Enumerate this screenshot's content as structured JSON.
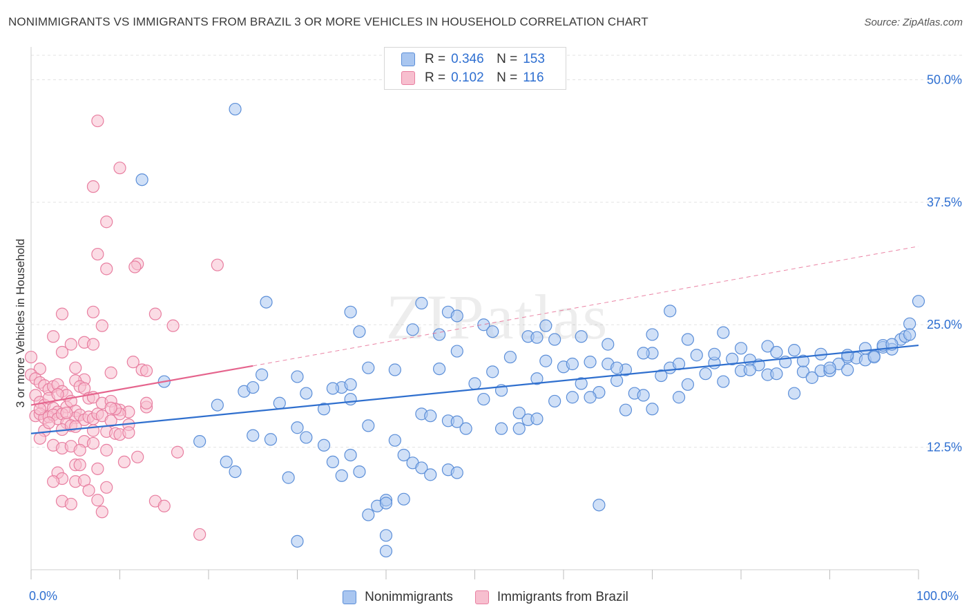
{
  "title": "NONIMMIGRANTS VS IMMIGRANTS FROM BRAZIL 3 OR MORE VEHICLES IN HOUSEHOLD CORRELATION CHART",
  "source": "Source: ZipAtlas.com",
  "watermark": "ZIPatlas",
  "colors": {
    "blue_fill": "#a9c6f0",
    "blue_stroke": "#5b8ed8",
    "blue_line": "#2f6fce",
    "pink_fill": "#f7bfcf",
    "pink_stroke": "#e87ea0",
    "pink_line": "#e5648d",
    "grid": "#e3e3e3",
    "tick_text": "#2e6fd1"
  },
  "legend_top": [
    {
      "r_label": "R =",
      "r_value": "0.346",
      "n_label": "N =",
      "n_value": "153"
    },
    {
      "r_label": "R =",
      "r_value": "0.102",
      "n_label": "N =",
      "n_value": "116"
    }
  ],
  "chart_data": {
    "type": "scatter",
    "title": "NONIMMIGRANTS VS IMMIGRANTS FROM BRAZIL 3 OR MORE VEHICLES IN HOUSEHOLD CORRELATION CHART",
    "xlabel": "",
    "ylabel": "3 or more Vehicles in Household",
    "xlim": [
      0,
      100
    ],
    "ylim": [
      0,
      52.5
    ],
    "x_tick_labels": [
      "0.0%",
      "100.0%"
    ],
    "y_ticks": [
      12.5,
      25.0,
      37.5,
      50.0
    ],
    "y_tick_labels": [
      "12.5%",
      "25.0%",
      "37.5%",
      "50.0%"
    ],
    "grid": true,
    "legend_position": "top-center and bottom",
    "series": [
      {
        "name": "Nonimmigrants",
        "r": 0.346,
        "n": 153,
        "trend": {
          "x": [
            0,
            100
          ],
          "y": [
            13.9,
            22.9
          ]
        },
        "points": [
          [
            23,
            47.0
          ],
          [
            12.5,
            39.8
          ],
          [
            26.5,
            27.3
          ],
          [
            44,
            27.2
          ],
          [
            36,
            26.3
          ],
          [
            47,
            26.3
          ],
          [
            48,
            25.9
          ],
          [
            72,
            26.4
          ],
          [
            51,
            25.0
          ],
          [
            58,
            24.9
          ],
          [
            37,
            24.3
          ],
          [
            43,
            24.5
          ],
          [
            46,
            24.0
          ],
          [
            56,
            23.8
          ],
          [
            59,
            23.5
          ],
          [
            62,
            23.8
          ],
          [
            65,
            23.0
          ],
          [
            70,
            24.0
          ],
          [
            74,
            23.5
          ],
          [
            78,
            24.2
          ],
          [
            80,
            22.6
          ],
          [
            83,
            22.8
          ],
          [
            86,
            22.4
          ],
          [
            89,
            22.0
          ],
          [
            92,
            21.7
          ],
          [
            96,
            22.7
          ],
          [
            98,
            23.5
          ],
          [
            99,
            25.1
          ],
          [
            100,
            27.4
          ],
          [
            15,
            19.2
          ],
          [
            21,
            16.8
          ],
          [
            24,
            18.2
          ],
          [
            25,
            18.6
          ],
          [
            26,
            19.9
          ],
          [
            28,
            17.0
          ],
          [
            30,
            19.7
          ],
          [
            33,
            16.4
          ],
          [
            35,
            18.6
          ],
          [
            36,
            18.9
          ],
          [
            38,
            20.6
          ],
          [
            41,
            20.4
          ],
          [
            44,
            15.9
          ],
          [
            45,
            15.7
          ],
          [
            47,
            15.2
          ],
          [
            48,
            15.1
          ],
          [
            49,
            14.4
          ],
          [
            50,
            19.0
          ],
          [
            51,
            17.4
          ],
          [
            52,
            20.2
          ],
          [
            53,
            18.3
          ],
          [
            54,
            21.7
          ],
          [
            55,
            14.4
          ],
          [
            56,
            15.3
          ],
          [
            57,
            19.5
          ],
          [
            58,
            21.3
          ],
          [
            60,
            20.7
          ],
          [
            61,
            17.6
          ],
          [
            62,
            19.0
          ],
          [
            63,
            21.2
          ],
          [
            64,
            18.1
          ],
          [
            65,
            21.0
          ],
          [
            66,
            19.3
          ],
          [
            67,
            20.4
          ],
          [
            68,
            18.0
          ],
          [
            69,
            17.8
          ],
          [
            70,
            22.1
          ],
          [
            71,
            19.8
          ],
          [
            72,
            20.6
          ],
          [
            73,
            17.6
          ],
          [
            74,
            18.9
          ],
          [
            75,
            21.9
          ],
          [
            76,
            20.0
          ],
          [
            77,
            21.1
          ],
          [
            78,
            19.2
          ],
          [
            79,
            21.5
          ],
          [
            80,
            20.3
          ],
          [
            81,
            21.4
          ],
          [
            82,
            20.9
          ],
          [
            83,
            19.9
          ],
          [
            84,
            20.0
          ],
          [
            85,
            21.2
          ],
          [
            86,
            18.0
          ],
          [
            87,
            20.2
          ],
          [
            88,
            19.6
          ],
          [
            89,
            20.3
          ],
          [
            90,
            20.3
          ],
          [
            91,
            21.0
          ],
          [
            92,
            20.4
          ],
          [
            93,
            21.6
          ],
          [
            94,
            21.4
          ],
          [
            95,
            21.8
          ],
          [
            97,
            22.5
          ],
          [
            98.5,
            23.8
          ],
          [
            19,
            13.1
          ],
          [
            22,
            11.0
          ],
          [
            25,
            13.7
          ],
          [
            27,
            13.3
          ],
          [
            29,
            9.4
          ],
          [
            30,
            14.5
          ],
          [
            31,
            13.5
          ],
          [
            33,
            12.7
          ],
          [
            34,
            11.0
          ],
          [
            35,
            9.6
          ],
          [
            36,
            11.7
          ],
          [
            37,
            10.0
          ],
          [
            38,
            14.7
          ],
          [
            39,
            6.5
          ],
          [
            40,
            7.1
          ],
          [
            41,
            13.2
          ],
          [
            42,
            11.7
          ],
          [
            43,
            10.9
          ],
          [
            44,
            10.4
          ],
          [
            45,
            9.7
          ],
          [
            47,
            10.2
          ],
          [
            48,
            9.9
          ],
          [
            53,
            14.4
          ],
          [
            57,
            15.4
          ],
          [
            38,
            5.6
          ],
          [
            40,
            6.8
          ],
          [
            42,
            7.2
          ],
          [
            23,
            10.0
          ],
          [
            30,
            2.9
          ],
          [
            40,
            3.5
          ],
          [
            40,
            1.9
          ],
          [
            64,
            6.6
          ],
          [
            70,
            16.4
          ],
          [
            67,
            16.3
          ],
          [
            63,
            17.6
          ],
          [
            48,
            22.3
          ],
          [
            46,
            20.5
          ],
          [
            52,
            24.3
          ],
          [
            57,
            23.7
          ],
          [
            61,
            21.0
          ],
          [
            66,
            20.6
          ],
          [
            69,
            22.1
          ],
          [
            73,
            21.0
          ],
          [
            77,
            22.0
          ],
          [
            81,
            20.4
          ],
          [
            84,
            22.2
          ],
          [
            87,
            21.3
          ],
          [
            90,
            20.6
          ],
          [
            92,
            21.9
          ],
          [
            94,
            22.6
          ],
          [
            95,
            21.7
          ],
          [
            96,
            22.9
          ],
          [
            97,
            23.0
          ],
          [
            99,
            24.0
          ],
          [
            55,
            16.0
          ],
          [
            59,
            17.2
          ],
          [
            31,
            18.0
          ],
          [
            34,
            18.5
          ],
          [
            36,
            17.4
          ]
        ]
      },
      {
        "name": "Immigrants from Brazil",
        "r": 0.102,
        "n": 116,
        "trend": {
          "x": [
            0,
            25
          ],
          "y": [
            16.8,
            20.8
          ]
        },
        "trend_dashed": {
          "x": [
            25,
            100
          ],
          "y": [
            20.8,
            33.0
          ]
        },
        "points": [
          [
            7.5,
            45.8
          ],
          [
            10,
            41.0
          ],
          [
            7,
            39.1
          ],
          [
            8.5,
            35.5
          ],
          [
            7.5,
            32.2
          ],
          [
            12,
            31.2
          ],
          [
            11.7,
            30.9
          ],
          [
            8.5,
            30.7
          ],
          [
            21,
            31.1
          ],
          [
            3.5,
            26.1
          ],
          [
            7,
            26.3
          ],
          [
            14,
            26.1
          ],
          [
            8,
            24.9
          ],
          [
            16,
            24.9
          ],
          [
            2.5,
            23.8
          ],
          [
            4.5,
            23.0
          ],
          [
            6,
            23.2
          ],
          [
            7,
            23.0
          ],
          [
            3.5,
            22.2
          ],
          [
            11.5,
            21.2
          ],
          [
            0,
            21.7
          ],
          [
            1,
            20.5
          ],
          [
            5,
            20.6
          ],
          [
            9,
            20.1
          ],
          [
            12.5,
            20.4
          ],
          [
            13,
            20.3
          ],
          [
            6,
            19.4
          ],
          [
            0,
            19.9
          ],
          [
            0.5,
            19.5
          ],
          [
            1,
            19.1
          ],
          [
            1.5,
            18.8
          ],
          [
            2,
            18.4
          ],
          [
            2.5,
            18.7
          ],
          [
            3,
            18.9
          ],
          [
            3.5,
            18.2
          ],
          [
            4,
            17.8
          ],
          [
            5,
            19.3
          ],
          [
            5.5,
            18.7
          ],
          [
            6,
            18.5
          ],
          [
            0.5,
            17.8
          ],
          [
            1,
            17.1
          ],
          [
            1.5,
            16.8
          ],
          [
            2,
            17.5
          ],
          [
            2.5,
            16.5
          ],
          [
            3,
            16.1
          ],
          [
            4,
            16.6
          ],
          [
            4.5,
            17.2
          ],
          [
            5,
            16.2
          ],
          [
            6.5,
            17.5
          ],
          [
            7,
            17.6
          ],
          [
            8,
            17.0
          ],
          [
            9,
            17.2
          ],
          [
            10,
            16.3
          ],
          [
            11,
            16.1
          ],
          [
            13,
            16.6
          ],
          [
            0.5,
            15.7
          ],
          [
            1,
            15.9
          ],
          [
            1.5,
            15.5
          ],
          [
            2,
            15.6
          ],
          [
            2.5,
            15.8
          ],
          [
            3,
            15.4
          ],
          [
            3.5,
            15.9
          ],
          [
            4,
            15.0
          ],
          [
            5,
            15.5
          ],
          [
            5.5,
            15.8
          ],
          [
            6,
            15.3
          ],
          [
            6.5,
            15.6
          ],
          [
            7,
            15.4
          ],
          [
            7.5,
            15.9
          ],
          [
            8,
            15.7
          ],
          [
            9,
            15.2
          ],
          [
            10,
            15.9
          ],
          [
            11,
            14.8
          ],
          [
            1.5,
            14.2
          ],
          [
            3.5,
            14.3
          ],
          [
            4.5,
            14.7
          ],
          [
            6,
            13.1
          ],
          [
            8.5,
            14.1
          ],
          [
            9.5,
            13.9
          ],
          [
            1,
            13.4
          ],
          [
            2.5,
            12.7
          ],
          [
            3.5,
            12.4
          ],
          [
            4.5,
            12.6
          ],
          [
            5.5,
            12.2
          ],
          [
            7,
            12.9
          ],
          [
            8.5,
            12.2
          ],
          [
            10.5,
            11.0
          ],
          [
            16.5,
            12.0
          ],
          [
            5,
            10.7
          ],
          [
            5.5,
            10.7
          ],
          [
            7.5,
            10.3
          ],
          [
            3,
            9.9
          ],
          [
            3.5,
            9.3
          ],
          [
            5,
            9.0
          ],
          [
            6,
            9.1
          ],
          [
            6.5,
            8.1
          ],
          [
            8.5,
            8.4
          ],
          [
            2.5,
            9.0
          ],
          [
            3.5,
            7.0
          ],
          [
            4.5,
            6.7
          ],
          [
            7.5,
            7.1
          ],
          [
            8,
            5.9
          ],
          [
            14,
            7.0
          ],
          [
            15,
            6.5
          ],
          [
            19,
            3.6
          ],
          [
            10,
            13.8
          ],
          [
            9.5,
            16.4
          ],
          [
            12,
            11.5
          ],
          [
            11,
            14.0
          ],
          [
            13,
            17.0
          ],
          [
            4,
            16.0
          ],
          [
            2,
            15.0
          ],
          [
            1,
            16.4
          ],
          [
            3,
            17.9
          ],
          [
            5,
            14.6
          ],
          [
            7,
            14.2
          ],
          [
            9,
            16.5
          ]
        ]
      }
    ]
  },
  "legend_bottom": [
    "Nonimmigrants",
    "Immigrants from Brazil"
  ]
}
